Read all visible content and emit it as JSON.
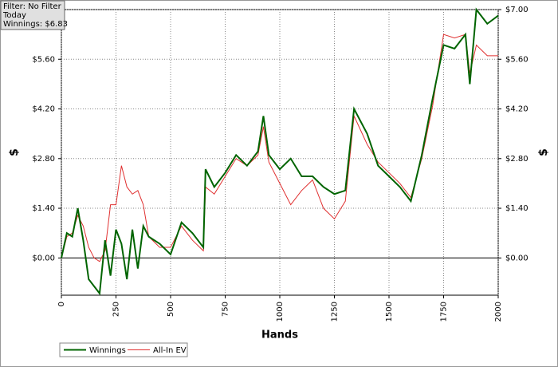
{
  "chart_data": {
    "type": "line",
    "annotations": [
      "Filter: No Filter",
      "Today",
      "Winnings: $6.83"
    ],
    "x_label": "Hands",
    "y_label": "$",
    "y2_label": "$",
    "x": [
      0,
      25,
      50,
      75,
      100,
      125,
      150,
      175,
      200,
      225,
      250,
      275,
      300,
      325,
      350,
      375,
      400,
      450,
      500,
      550,
      600,
      650,
      660,
      700,
      750,
      800,
      850,
      900,
      925,
      950,
      1000,
      1050,
      1100,
      1150,
      1200,
      1250,
      1300,
      1340,
      1400,
      1450,
      1500,
      1550,
      1600,
      1650,
      1700,
      1750,
      1800,
      1850,
      1870,
      1900,
      1950,
      2000
    ],
    "series": [
      {
        "name": "Winnings",
        "color": "#006400",
        "values": [
          0,
          0.7,
          0.6,
          1.4,
          0.5,
          -0.6,
          -0.8,
          -1.0,
          0.5,
          -0.5,
          0.8,
          0.4,
          -0.6,
          0.8,
          -0.3,
          0.9,
          0.6,
          0.4,
          0.1,
          1.0,
          0.7,
          0.3,
          2.5,
          2.0,
          2.4,
          2.9,
          2.6,
          3.0,
          4.0,
          2.9,
          2.5,
          2.8,
          2.3,
          2.3,
          2.0,
          1.8,
          1.9,
          4.2,
          3.5,
          2.6,
          2.3,
          2.0,
          1.6,
          2.9,
          4.5,
          6.0,
          5.9,
          6.3,
          4.9,
          7.0,
          6.6,
          6.83
        ]
      },
      {
        "name": "All-In EV",
        "color": "#e03030",
        "values": [
          0,
          0.6,
          0.7,
          1.2,
          0.9,
          0.3,
          0.0,
          -0.1,
          0.2,
          1.5,
          1.5,
          2.6,
          2.0,
          1.8,
          1.9,
          1.5,
          0.6,
          0.3,
          0.3,
          0.9,
          0.5,
          0.2,
          2.0,
          1.8,
          2.3,
          2.8,
          2.6,
          2.9,
          3.7,
          2.7,
          2.1,
          1.5,
          1.9,
          2.2,
          1.4,
          1.1,
          1.6,
          4.0,
          3.2,
          2.7,
          2.4,
          2.1,
          1.7,
          2.8,
          4.3,
          6.3,
          6.2,
          6.3,
          5.2,
          6.0,
          5.7,
          5.7
        ]
      }
    ],
    "xlim": [
      0,
      2000
    ],
    "xticks": [
      0,
      250,
      500,
      750,
      1000,
      1250,
      1500,
      1750,
      2000
    ],
    "ylim": [
      -1.05,
      7
    ],
    "yticks": [
      {
        "value": 0,
        "label": "$0.00"
      },
      {
        "value": 1.4,
        "label": "$1.40"
      },
      {
        "value": 2.8,
        "label": "$2.80"
      },
      {
        "value": 4.2,
        "label": "$4.20"
      },
      {
        "value": 5.6,
        "label": "$5.60"
      },
      {
        "value": 7,
        "label": "$7.00"
      }
    ],
    "y2lim": [
      -1.05,
      7
    ],
    "y2ticks": [
      {
        "value": 0,
        "label": "$0.00"
      },
      {
        "value": 1.4,
        "label": "$1.40"
      },
      {
        "value": 2.8,
        "label": "$2.80"
      },
      {
        "value": 4.2,
        "label": "$4.20"
      },
      {
        "value": 5.6,
        "label": "$5.60"
      },
      {
        "value": 7,
        "label": "$7.00"
      }
    ],
    "grid": true,
    "legend": "bottom-left"
  }
}
